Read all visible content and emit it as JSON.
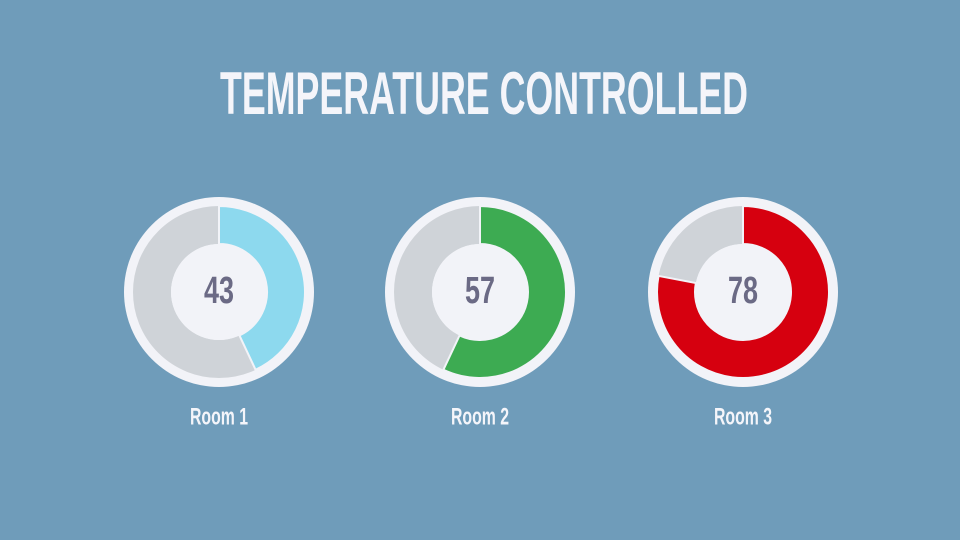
{
  "chart_data": {
    "type": "gauge",
    "title": "TEMPERATURE CONTROLLED",
    "categories": [
      "Room 1",
      "Room 2",
      "Room 3"
    ],
    "values": [
      43,
      57,
      78
    ],
    "colors": [
      "#8dd9ee",
      "#3dab52",
      "#d6000f"
    ],
    "ylim": [
      0,
      100
    ]
  }
}
